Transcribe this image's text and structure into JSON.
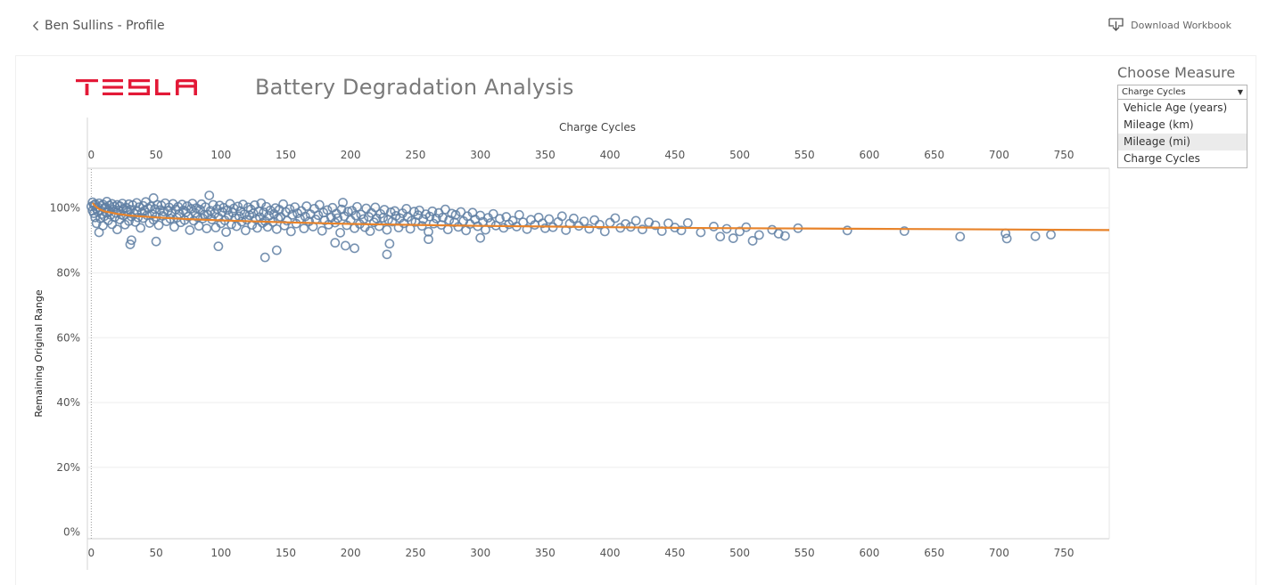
{
  "topbar": {
    "back_label": "Ben Sullins - Profile",
    "download_label": "Download Workbook"
  },
  "dashboard": {
    "brand": "TESLA",
    "title": "Battery Degradation Analysis"
  },
  "measure_filter": {
    "title": "Choose Measure",
    "selected": "Charge Cycles",
    "options": [
      {
        "label": "Vehicle Age (years)"
      },
      {
        "label": "Mileage (km)"
      },
      {
        "label": "Mileage (mi)"
      },
      {
        "label": "Charge Cycles"
      }
    ],
    "hovered_index": 2
  },
  "colors": {
    "brand_red": "#e31937",
    "point_stroke": "#5f7fa3",
    "trend_line": "#e8832a",
    "grid": "#eeeeee",
    "axis_text": "#555555"
  },
  "chart_data": {
    "type": "scatter",
    "title": "Battery Degradation Analysis",
    "xlabel": "Charge Cycles",
    "ylabel": "Remaining Original Range",
    "xlim": [
      -3,
      785
    ],
    "ylim": [
      -2,
      112
    ],
    "x_ticks": [
      0,
      50,
      100,
      150,
      200,
      250,
      300,
      350,
      400,
      450,
      500,
      550,
      600,
      650,
      700,
      750
    ],
    "y_ticks": [
      {
        "value": 0,
        "label": "0%"
      },
      {
        "value": 20,
        "label": "20%"
      },
      {
        "value": 40,
        "label": "40%"
      },
      {
        "value": 60,
        "label": "60%"
      },
      {
        "value": 80,
        "label": "80%"
      },
      {
        "value": 100,
        "label": "100%"
      }
    ],
    "grid": true,
    "legend": "none",
    "trend_line": [
      [
        1,
        101.6
      ],
      [
        3,
        100.6
      ],
      [
        6,
        99.7
      ],
      [
        10,
        99.0
      ],
      [
        20,
        98.2
      ],
      [
        30,
        97.7
      ],
      [
        50,
        97.1
      ],
      [
        75,
        96.6
      ],
      [
        100,
        96.2
      ],
      [
        150,
        95.6
      ],
      [
        200,
        95.1
      ],
      [
        250,
        94.8
      ],
      [
        300,
        94.5
      ],
      [
        350,
        94.3
      ],
      [
        400,
        94.1
      ],
      [
        450,
        93.9
      ],
      [
        500,
        93.8
      ],
      [
        550,
        93.7
      ],
      [
        600,
        93.6
      ],
      [
        650,
        93.5
      ],
      [
        700,
        93.4
      ],
      [
        750,
        93.3
      ],
      [
        785,
        93.2
      ]
    ],
    "points": [
      [
        0,
        100.5
      ],
      [
        1,
        99.2
      ],
      [
        1,
        101.8
      ],
      [
        2,
        98.4
      ],
      [
        2,
        100.9
      ],
      [
        3,
        97.1
      ],
      [
        3,
        101.2
      ],
      [
        4,
        99.8
      ],
      [
        4,
        95.3
      ],
      [
        5,
        100.3
      ],
      [
        5,
        98.9
      ],
      [
        6,
        101.5
      ],
      [
        6,
        92.5
      ],
      [
        7,
        99.4
      ],
      [
        7,
        96.8
      ],
      [
        8,
        100.7
      ],
      [
        8,
        98.1
      ],
      [
        9,
        101.1
      ],
      [
        9,
        94.6
      ],
      [
        10,
        99.9
      ],
      [
        10,
        97.5
      ],
      [
        11,
        100.2
      ],
      [
        12,
        98.7
      ],
      [
        12,
        102.0
      ],
      [
        13,
        96.2
      ],
      [
        14,
        100.8
      ],
      [
        14,
        99.1
      ],
      [
        15,
        97.9
      ],
      [
        16,
        101.3
      ],
      [
        16,
        95.0
      ],
      [
        17,
        99.6
      ],
      [
        18,
        100.4
      ],
      [
        18,
        97.2
      ],
      [
        19,
        98.5
      ],
      [
        20,
        101.0
      ],
      [
        20,
        93.4
      ],
      [
        21,
        99.3
      ],
      [
        22,
        100.6
      ],
      [
        22,
        96.5
      ],
      [
        23,
        98.0
      ],
      [
        24,
        101.4
      ],
      [
        25,
        97.7
      ],
      [
        25,
        99.8
      ],
      [
        26,
        94.9
      ],
      [
        27,
        100.1
      ],
      [
        28,
        98.8
      ],
      [
        29,
        101.2
      ],
      [
        29,
        96.0
      ],
      [
        30,
        99.5
      ],
      [
        31,
        97.4
      ],
      [
        32,
        100.9
      ],
      [
        33,
        98.3
      ],
      [
        34,
        95.7
      ],
      [
        35,
        101.6
      ],
      [
        35,
        99.0
      ],
      [
        36,
        97.1
      ],
      [
        37,
        100.3
      ],
      [
        38,
        93.9
      ],
      [
        39,
        98.6
      ],
      [
        40,
        100.7
      ],
      [
        40,
        96.9
      ],
      [
        41,
        99.2
      ],
      [
        42,
        101.9
      ],
      [
        43,
        97.8
      ],
      [
        44,
        99.9
      ],
      [
        45,
        95.4
      ],
      [
        46,
        100.5
      ],
      [
        47,
        98.1
      ],
      [
        48,
        103.1
      ],
      [
        48,
        96.4
      ],
      [
        49,
        99.7
      ],
      [
        50,
        97.3
      ],
      [
        51,
        101.0
      ],
      [
        52,
        94.7
      ],
      [
        53,
        99.4
      ],
      [
        54,
        100.8
      ],
      [
        55,
        97.6
      ],
      [
        56,
        98.9
      ],
      [
        57,
        101.5
      ],
      [
        58,
        95.9
      ],
      [
        59,
        99.1
      ],
      [
        60,
        100.2
      ],
      [
        61,
        96.7
      ],
      [
        62,
        98.4
      ],
      [
        63,
        101.3
      ],
      [
        64,
        94.2
      ],
      [
        65,
        99.6
      ],
      [
        66,
        97.0
      ],
      [
        67,
        100.4
      ],
      [
        68,
        98.2
      ],
      [
        69,
        95.6
      ],
      [
        70,
        101.1
      ],
      [
        71,
        99.3
      ],
      [
        72,
        96.3
      ],
      [
        73,
        98.7
      ],
      [
        74,
        100.6
      ],
      [
        75,
        97.4
      ],
      [
        76,
        93.2
      ],
      [
        77,
        99.8
      ],
      [
        78,
        101.4
      ],
      [
        79,
        96.1
      ],
      [
        80,
        98.5
      ],
      [
        81,
        100.0
      ],
      [
        82,
        97.2
      ],
      [
        83,
        94.5
      ],
      [
        84,
        99.5
      ],
      [
        85,
        101.2
      ],
      [
        86,
        96.8
      ],
      [
        87,
        98.0
      ],
      [
        88,
        100.3
      ],
      [
        89,
        93.7
      ],
      [
        90,
        97.9
      ],
      [
        91,
        103.9
      ],
      [
        92,
        99.2
      ],
      [
        93,
        96.5
      ],
      [
        94,
        101.0
      ],
      [
        95,
        98.3
      ],
      [
        96,
        94.0
      ],
      [
        97,
        99.7
      ],
      [
        98,
        97.1
      ],
      [
        99,
        100.8
      ],
      [
        100,
        95.3
      ],
      [
        101,
        98.8
      ],
      [
        102,
        100.1
      ],
      [
        103,
        96.2
      ],
      [
        104,
        92.6
      ],
      [
        105,
        99.4
      ],
      [
        106,
        97.7
      ],
      [
        107,
        101.3
      ],
      [
        108,
        95.0
      ],
      [
        109,
        98.6
      ],
      [
        110,
        99.9
      ],
      [
        111,
        96.9
      ],
      [
        112,
        94.4
      ],
      [
        113,
        100.5
      ],
      [
        114,
        97.5
      ],
      [
        115,
        99.1
      ],
      [
        116,
        95.8
      ],
      [
        117,
        101.1
      ],
      [
        118,
        98.1
      ],
      [
        119,
        93.1
      ],
      [
        120,
        96.4
      ],
      [
        121,
        100.2
      ],
      [
        122,
        97.8
      ],
      [
        123,
        99.6
      ],
      [
        124,
        94.8
      ],
      [
        125,
        98.4
      ],
      [
        126,
        100.9
      ],
      [
        127,
        96.6
      ],
      [
        128,
        93.9
      ],
      [
        129,
        99.0
      ],
      [
        130,
        97.2
      ],
      [
        131,
        101.5
      ],
      [
        132,
        95.4
      ],
      [
        133,
        98.7
      ],
      [
        134,
        96.0
      ],
      [
        135,
        100.4
      ],
      [
        136,
        94.2
      ],
      [
        137,
        97.6
      ],
      [
        138,
        99.3
      ],
      [
        140,
        95.7
      ],
      [
        141,
        98.2
      ],
      [
        142,
        100.0
      ],
      [
        143,
        93.5
      ],
      [
        144,
        96.8
      ],
      [
        145,
        99.5
      ],
      [
        146,
        97.3
      ],
      [
        148,
        101.2
      ],
      [
        149,
        94.6
      ],
      [
        150,
        98.8
      ],
      [
        151,
        96.1
      ],
      [
        153,
        99.7
      ],
      [
        154,
        92.8
      ],
      [
        155,
        97.9
      ],
      [
        157,
        100.3
      ],
      [
        158,
        95.2
      ],
      [
        159,
        98.4
      ],
      [
        161,
        96.7
      ],
      [
        162,
        99.1
      ],
      [
        164,
        93.7
      ],
      [
        165,
        97.4
      ],
      [
        166,
        100.6
      ],
      [
        168,
        95.9
      ],
      [
        169,
        98.1
      ],
      [
        171,
        94.3
      ],
      [
        172,
        99.8
      ],
      [
        173,
        96.5
      ],
      [
        175,
        97.8
      ],
      [
        176,
        101.0
      ],
      [
        178,
        93.0
      ],
      [
        179,
        98.6
      ],
      [
        180,
        96.2
      ],
      [
        182,
        99.4
      ],
      [
        183,
        94.9
      ],
      [
        185,
        97.1
      ],
      [
        186,
        100.1
      ],
      [
        188,
        95.5
      ],
      [
        189,
        98.3
      ],
      [
        190,
        96.9
      ],
      [
        192,
        92.4
      ],
      [
        193,
        99.6
      ],
      [
        194,
        101.7
      ],
      [
        195,
        97.5
      ],
      [
        197,
        94.7
      ],
      [
        198,
        98.9
      ],
      [
        200,
        96.3
      ],
      [
        201,
        99.2
      ],
      [
        203,
        93.8
      ],
      [
        204,
        97.7
      ],
      [
        205,
        100.4
      ],
      [
        207,
        95.1
      ],
      [
        208,
        98.0
      ],
      [
        210,
        96.6
      ],
      [
        211,
        94.1
      ],
      [
        212,
        99.9
      ],
      [
        214,
        97.3
      ],
      [
        215,
        92.9
      ],
      [
        216,
        98.5
      ],
      [
        218,
        95.6
      ],
      [
        219,
        100.2
      ],
      [
        220,
        96.8
      ],
      [
        222,
        94.4
      ],
      [
        223,
        98.2
      ],
      [
        225,
        97.0
      ],
      [
        226,
        99.5
      ],
      [
        228,
        93.3
      ],
      [
        229,
        96.4
      ],
      [
        231,
        98.7
      ],
      [
        232,
        95.8
      ],
      [
        234,
        99.1
      ],
      [
        235,
        97.6
      ],
      [
        237,
        94.0
      ],
      [
        238,
        96.9
      ],
      [
        240,
        98.4
      ],
      [
        241,
        95.3
      ],
      [
        243,
        99.8
      ],
      [
        244,
        97.2
      ],
      [
        246,
        93.6
      ],
      [
        247,
        96.1
      ],
      [
        249,
        98.9
      ],
      [
        250,
        95.7
      ],
      [
        252,
        97.8
      ],
      [
        253,
        99.3
      ],
      [
        255,
        94.5
      ],
      [
        256,
        96.6
      ],
      [
        258,
        98.1
      ],
      [
        260,
        92.7
      ],
      [
        261,
        97.4
      ],
      [
        263,
        99.0
      ],
      [
        264,
        95.2
      ],
      [
        266,
        96.8
      ],
      [
        268,
        98.5
      ],
      [
        270,
        94.8
      ],
      [
        271,
        97.1
      ],
      [
        273,
        99.6
      ],
      [
        275,
        93.4
      ],
      [
        276,
        96.3
      ],
      [
        278,
        98.3
      ],
      [
        280,
        95.6
      ],
      [
        281,
        97.9
      ],
      [
        283,
        94.2
      ],
      [
        285,
        98.8
      ],
      [
        287,
        96.0
      ],
      [
        289,
        93.1
      ],
      [
        290,
        97.5
      ],
      [
        292,
        95.1
      ],
      [
        294,
        98.6
      ],
      [
        296,
        96.5
      ],
      [
        298,
        94.4
      ],
      [
        300,
        97.7
      ],
      [
        302,
        95.8
      ],
      [
        304,
        93.3
      ],
      [
        306,
        97.0
      ],
      [
        308,
        95.4
      ],
      [
        310,
        98.2
      ],
      [
        312,
        94.6
      ],
      [
        315,
        96.7
      ],
      [
        318,
        93.9
      ],
      [
        320,
        97.3
      ],
      [
        322,
        95.0
      ],
      [
        325,
        96.1
      ],
      [
        328,
        94.3
      ],
      [
        330,
        97.9
      ],
      [
        333,
        95.6
      ],
      [
        336,
        93.5
      ],
      [
        339,
        96.4
      ],
      [
        342,
        94.8
      ],
      [
        345,
        97.1
      ],
      [
        348,
        95.3
      ],
      [
        350,
        93.8
      ],
      [
        353,
        96.6
      ],
      [
        356,
        94.1
      ],
      [
        360,
        95.7
      ],
      [
        363,
        97.5
      ],
      [
        366,
        93.2
      ],
      [
        369,
        95.2
      ],
      [
        372,
        96.8
      ],
      [
        376,
        94.5
      ],
      [
        380,
        95.9
      ],
      [
        384,
        93.6
      ],
      [
        388,
        96.3
      ],
      [
        392,
        94.9
      ],
      [
        396,
        92.8
      ],
      [
        400,
        95.5
      ],
      [
        404,
        96.9
      ],
      [
        408,
        93.9
      ],
      [
        412,
        95.1
      ],
      [
        416,
        94.2
      ],
      [
        420,
        96.1
      ],
      [
        425,
        93.4
      ],
      [
        430,
        95.6
      ],
      [
        435,
        94.7
      ],
      [
        440,
        92.9
      ],
      [
        445,
        95.3
      ],
      [
        450,
        94.0
      ],
      [
        455,
        93.1
      ],
      [
        460,
        95.4
      ],
      [
        470,
        92.5
      ],
      [
        480,
        94.3
      ],
      [
        485,
        91.2
      ],
      [
        490,
        93.6
      ],
      [
        495,
        90.7
      ],
      [
        500,
        92.8
      ],
      [
        505,
        94.1
      ],
      [
        510,
        89.9
      ],
      [
        515,
        91.7
      ],
      [
        525,
        93.3
      ],
      [
        530,
        92.1
      ],
      [
        535,
        91.4
      ],
      [
        545,
        93.8
      ],
      [
        583,
        93.1
      ],
      [
        627,
        92.9
      ],
      [
        670,
        91.2
      ],
      [
        705,
        92.2
      ],
      [
        706,
        90.6
      ],
      [
        728,
        91.3
      ],
      [
        740,
        91.8
      ]
    ],
    "outliers": [
      [
        30,
        88.8
      ],
      [
        31,
        90.1
      ],
      [
        50,
        89.7
      ],
      [
        98,
        88.2
      ],
      [
        134,
        84.8
      ],
      [
        143,
        87.0
      ],
      [
        188,
        89.3
      ],
      [
        196,
        88.4
      ],
      [
        203,
        87.6
      ],
      [
        228,
        85.7
      ],
      [
        230,
        89.0
      ],
      [
        260,
        90.4
      ],
      [
        300,
        90.8
      ]
    ]
  }
}
